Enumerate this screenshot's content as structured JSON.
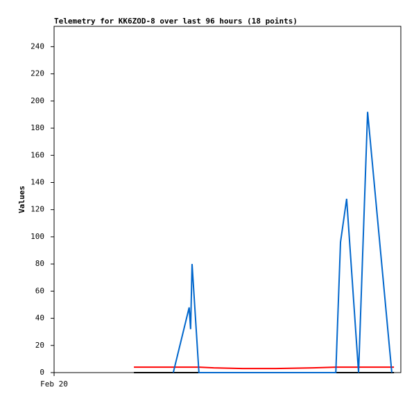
{
  "chart_data": {
    "type": "line",
    "title": "Telemetry for KK6ZOD-8 over last 96 hours (18 points)",
    "ylabel": "Values",
    "x": [
      22.1,
      27.6,
      33.0,
      37.4,
      37.8,
      38.2,
      40.1,
      44.2,
      52.2,
      61.4,
      71.8,
      78.0,
      79.3,
      81.0,
      84.3,
      86.8,
      93.5,
      94.1
    ],
    "series": [
      {
        "color": "#000000",
        "values": [
          0,
          0,
          0,
          0,
          0,
          0,
          0,
          0,
          0,
          0,
          0,
          0,
          0,
          0,
          0,
          0,
          0,
          0
        ]
      },
      {
        "color": "#ff0000",
        "values": [
          4,
          4,
          4,
          4,
          4,
          4,
          4,
          3.5,
          3,
          3,
          3.5,
          4,
          4,
          4,
          4,
          4,
          4,
          4
        ]
      },
      {
        "color": "#0066cc",
        "values": [
          null,
          null,
          0,
          48,
          32,
          80,
          0,
          0,
          0,
          0,
          0,
          0,
          96,
          128,
          0,
          192,
          0,
          null
        ]
      }
    ],
    "xlim": [
      0,
      96
    ],
    "xticks": [
      {
        "value": 0,
        "label": "Feb 20"
      }
    ],
    "ylim": [
      0,
      255
    ],
    "yticks": [
      0,
      20,
      40,
      60,
      80,
      100,
      120,
      140,
      160,
      180,
      200,
      220,
      240
    ],
    "grid": false
  }
}
